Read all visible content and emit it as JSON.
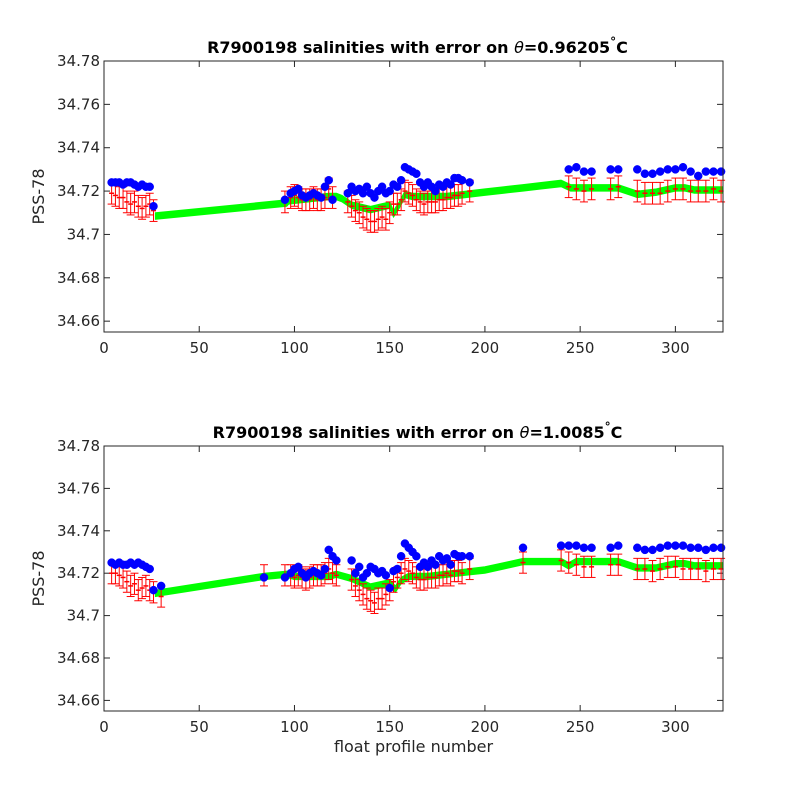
{
  "chart_data": [
    {
      "type": "scatter",
      "title_prefix": "R7900198 salinities with error on ",
      "title_theta": "θ",
      "title_value": "=0.96205",
      "title_deg": "°",
      "title_unit": "C",
      "xlabel": "",
      "ylabel": "PSS-78",
      "xlim": [
        0,
        325
      ],
      "ylim": [
        34.655,
        34.78
      ],
      "xticks": [
        0,
        50,
        100,
        150,
        200,
        250,
        300
      ],
      "yticks": [
        34.66,
        34.68,
        34.7,
        34.72,
        34.74,
        34.76,
        34.78
      ],
      "ytick_labels": [
        "34.66",
        "34.68",
        "34.7",
        "34.72",
        "34.74",
        "34.76",
        "34.78"
      ],
      "colors": {
        "observed": "#0000ff",
        "calibrated": "#ff0000",
        "error_band": "#00ff00"
      },
      "observed": {
        "x": [
          4,
          6,
          8,
          10,
          12,
          14,
          16,
          18,
          20,
          22,
          24,
          26,
          95,
          98,
          100,
          102,
          104,
          106,
          108,
          110,
          112,
          114,
          116,
          118,
          120,
          128,
          130,
          132,
          134,
          136,
          138,
          140,
          142,
          144,
          146,
          148,
          150,
          152,
          154,
          156,
          158,
          160,
          162,
          164,
          166,
          168,
          170,
          172,
          174,
          176,
          178,
          180,
          182,
          184,
          186,
          188,
          192,
          244,
          248,
          252,
          256,
          266,
          270,
          280,
          284,
          288,
          292,
          296,
          300,
          304,
          308,
          312,
          316,
          320,
          324
        ],
        "y": [
          34.724,
          34.724,
          34.724,
          34.723,
          34.724,
          34.724,
          34.723,
          34.722,
          34.723,
          34.722,
          34.722,
          34.713,
          34.716,
          34.719,
          34.72,
          34.721,
          34.718,
          34.717,
          34.718,
          34.719,
          34.718,
          34.717,
          34.722,
          34.725,
          34.716,
          34.719,
          34.722,
          34.72,
          34.721,
          34.719,
          34.722,
          34.719,
          34.717,
          34.72,
          34.722,
          34.719,
          34.72,
          34.723,
          34.722,
          34.725,
          34.731,
          34.73,
          34.729,
          34.728,
          34.724,
          34.722,
          34.724,
          34.722,
          34.72,
          34.723,
          34.722,
          34.724,
          34.723,
          34.726,
          34.726,
          34.725,
          34.724,
          34.73,
          34.731,
          34.729,
          34.729,
          34.73,
          34.73,
          34.73,
          34.728,
          34.728,
          34.729,
          34.73,
          34.73,
          34.731,
          34.729,
          34.727,
          34.729,
          34.729,
          34.729
        ]
      },
      "calibrated": {
        "x": [
          4,
          6,
          8,
          10,
          12,
          14,
          16,
          18,
          20,
          22,
          24,
          26,
          95,
          98,
          100,
          102,
          104,
          106,
          108,
          110,
          112,
          114,
          116,
          118,
          120,
          128,
          130,
          132,
          134,
          136,
          138,
          140,
          142,
          144,
          146,
          148,
          150,
          152,
          154,
          156,
          158,
          160,
          162,
          164,
          166,
          168,
          170,
          172,
          174,
          176,
          178,
          180,
          182,
          184,
          186,
          188,
          192,
          244,
          248,
          252,
          256,
          266,
          270,
          280,
          284,
          288,
          292,
          296,
          300,
          304,
          308,
          312,
          316,
          320,
          324
        ],
        "y": [
          34.719,
          34.718,
          34.717,
          34.717,
          34.715,
          34.714,
          34.715,
          34.713,
          34.712,
          34.713,
          34.714,
          34.711,
          34.715,
          34.717,
          34.718,
          34.717,
          34.716,
          34.716,
          34.716,
          34.717,
          34.716,
          34.716,
          34.717,
          34.721,
          34.717,
          34.715,
          34.713,
          34.711,
          34.71,
          34.708,
          34.707,
          34.706,
          34.706,
          34.707,
          34.708,
          34.707,
          34.71,
          34.714,
          34.714,
          34.716,
          34.72,
          34.719,
          34.718,
          34.716,
          34.715,
          34.714,
          34.715,
          34.715,
          34.715,
          34.716,
          34.716,
          34.717,
          34.717,
          34.718,
          34.718,
          34.719,
          34.72,
          34.722,
          34.721,
          34.72,
          34.721,
          34.721,
          34.722,
          34.72,
          34.719,
          34.719,
          34.719,
          34.72,
          34.721,
          34.721,
          34.72,
          34.72,
          34.72,
          34.721,
          34.72
        ],
        "error": 0.005
      },
      "band": {
        "x": [
          27,
          96,
          97,
          118,
          122,
          125,
          130,
          140,
          150,
          152,
          155,
          158,
          162,
          170,
          180,
          190,
          200,
          210,
          220,
          230,
          240,
          245,
          250,
          256,
          270,
          280,
          290,
          300,
          305,
          310,
          320,
          325
        ],
        "lower": [
          34.707,
          34.713,
          34.714,
          34.716,
          34.716,
          34.715,
          34.712,
          34.71,
          34.712,
          34.708,
          34.712,
          34.717,
          34.716,
          34.716,
          34.716,
          34.717,
          34.718,
          34.719,
          34.72,
          34.721,
          34.722,
          34.72,
          34.72,
          34.72,
          34.72,
          34.717,
          34.718,
          34.72,
          34.72,
          34.719,
          34.719,
          34.719
        ],
        "upper": [
          34.71,
          34.716,
          34.717,
          34.719,
          34.719,
          34.718,
          34.715,
          34.713,
          34.715,
          34.711,
          34.715,
          34.72,
          34.719,
          34.719,
          34.719,
          34.72,
          34.721,
          34.722,
          34.723,
          34.724,
          34.725,
          34.723,
          34.723,
          34.723,
          34.723,
          34.72,
          34.721,
          34.723,
          34.723,
          34.722,
          34.722,
          34.722
        ]
      }
    },
    {
      "type": "scatter",
      "title_prefix": "R7900198 salinities with error on ",
      "title_theta": "θ",
      "title_value": "=1.0085",
      "title_deg": "°",
      "title_unit": "C",
      "xlabel": "float profile number",
      "ylabel": "PSS-78",
      "xlim": [
        0,
        325
      ],
      "ylim": [
        34.655,
        34.78
      ],
      "xticks": [
        0,
        50,
        100,
        150,
        200,
        250,
        300
      ],
      "yticks": [
        34.66,
        34.68,
        34.7,
        34.72,
        34.74,
        34.76,
        34.78
      ],
      "ytick_labels": [
        "34.66",
        "34.68",
        "34.7",
        "34.72",
        "34.74",
        "34.76",
        "34.78"
      ],
      "colors": {
        "observed": "#0000ff",
        "calibrated": "#ff0000",
        "error_band": "#00ff00"
      },
      "observed": {
        "x": [
          4,
          6,
          8,
          10,
          12,
          14,
          16,
          18,
          20,
          22,
          24,
          26,
          30,
          84,
          95,
          98,
          100,
          102,
          104,
          106,
          108,
          110,
          112,
          114,
          116,
          118,
          120,
          122,
          130,
          132,
          134,
          136,
          138,
          140,
          142,
          144,
          146,
          148,
          150,
          152,
          154,
          156,
          158,
          160,
          162,
          164,
          166,
          168,
          170,
          172,
          174,
          176,
          178,
          180,
          182,
          184,
          186,
          188,
          192,
          220,
          240,
          244,
          248,
          252,
          256,
          266,
          270,
          280,
          284,
          288,
          292,
          296,
          300,
          304,
          308,
          312,
          316,
          320,
          324
        ],
        "y": [
          34.725,
          34.724,
          34.725,
          34.724,
          34.724,
          34.725,
          34.724,
          34.725,
          34.724,
          34.723,
          34.722,
          34.712,
          34.714,
          34.718,
          34.718,
          34.72,
          34.722,
          34.723,
          34.72,
          34.718,
          34.72,
          34.721,
          34.72,
          34.719,
          34.722,
          34.731,
          34.728,
          34.726,
          34.726,
          34.72,
          34.723,
          34.718,
          34.72,
          34.723,
          34.722,
          34.72,
          34.721,
          34.719,
          34.713,
          34.721,
          34.722,
          34.728,
          34.734,
          34.732,
          34.73,
          34.728,
          34.723,
          34.725,
          34.723,
          34.726,
          34.724,
          34.728,
          34.726,
          34.727,
          34.724,
          34.729,
          34.728,
          34.728,
          34.728,
          34.732,
          34.733,
          34.733,
          34.733,
          34.732,
          34.732,
          34.732,
          34.733,
          34.732,
          34.731,
          34.731,
          34.732,
          34.733,
          34.733,
          34.733,
          34.732,
          34.732,
          34.731,
          34.732,
          34.732
        ]
      },
      "calibrated": {
        "x": [
          4,
          6,
          8,
          10,
          12,
          14,
          16,
          18,
          20,
          22,
          24,
          26,
          30,
          84,
          95,
          98,
          100,
          102,
          104,
          106,
          108,
          110,
          112,
          114,
          116,
          118,
          120,
          122,
          130,
          132,
          134,
          136,
          138,
          140,
          142,
          144,
          146,
          148,
          150,
          152,
          154,
          156,
          158,
          160,
          162,
          164,
          166,
          168,
          170,
          172,
          174,
          176,
          178,
          180,
          182,
          184,
          186,
          188,
          192,
          220,
          240,
          244,
          248,
          252,
          256,
          266,
          270,
          280,
          284,
          288,
          292,
          296,
          300,
          304,
          308,
          312,
          316,
          320,
          324
        ],
        "y": [
          34.72,
          34.72,
          34.719,
          34.718,
          34.716,
          34.714,
          34.715,
          34.712,
          34.713,
          34.714,
          34.712,
          34.711,
          34.709,
          34.719,
          34.719,
          34.719,
          34.718,
          34.719,
          34.718,
          34.717,
          34.718,
          34.719,
          34.719,
          34.719,
          34.72,
          34.722,
          34.72,
          34.719,
          34.717,
          34.714,
          34.712,
          34.71,
          34.708,
          34.707,
          34.706,
          34.708,
          34.708,
          34.71,
          34.712,
          34.716,
          34.718,
          34.72,
          34.722,
          34.721,
          34.72,
          34.718,
          34.717,
          34.717,
          34.718,
          34.718,
          34.718,
          34.719,
          34.719,
          34.72,
          34.719,
          34.721,
          34.721,
          34.72,
          34.722,
          34.725,
          34.726,
          34.725,
          34.724,
          34.723,
          34.723,
          34.724,
          34.724,
          34.722,
          34.722,
          34.721,
          34.722,
          34.723,
          34.723,
          34.722,
          34.722,
          34.722,
          34.721,
          34.722,
          34.722
        ],
        "error": 0.005
      },
      "band": {
        "x": [
          27,
          84,
          96,
          100,
          118,
          122,
          130,
          140,
          150,
          153,
          156,
          160,
          170,
          180,
          190,
          200,
          210,
          220,
          230,
          240,
          244,
          248,
          255,
          270,
          280,
          290,
          300,
          305,
          310,
          320,
          325
        ],
        "lower": [
          34.709,
          34.717,
          34.718,
          34.717,
          34.717,
          34.718,
          34.716,
          34.712,
          34.714,
          34.711,
          34.715,
          34.717,
          34.717,
          34.718,
          34.719,
          34.72,
          34.722,
          34.724,
          34.724,
          34.724,
          34.722,
          34.724,
          34.724,
          34.724,
          34.721,
          34.721,
          34.723,
          34.723,
          34.722,
          34.722,
          34.722
        ],
        "upper": [
          34.712,
          34.72,
          34.721,
          34.72,
          34.72,
          34.721,
          34.719,
          34.715,
          34.717,
          34.714,
          34.718,
          34.72,
          34.72,
          34.721,
          34.722,
          34.723,
          34.725,
          34.727,
          34.727,
          34.727,
          34.725,
          34.727,
          34.727,
          34.727,
          34.724,
          34.724,
          34.726,
          34.726,
          34.725,
          34.725,
          34.725
        ]
      }
    }
  ]
}
